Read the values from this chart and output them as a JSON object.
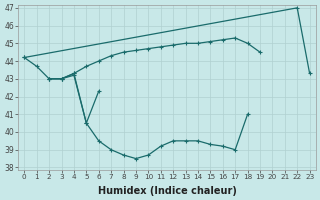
{
  "x_all": [
    0,
    1,
    2,
    3,
    4,
    5,
    6,
    7,
    8,
    9,
    10,
    11,
    12,
    13,
    14,
    15,
    16,
    17,
    18,
    19,
    20,
    21,
    22,
    23
  ],
  "seriesA": [
    44.2,
    null,
    null,
    null,
    null,
    null,
    null,
    null,
    null,
    null,
    null,
    null,
    null,
    null,
    null,
    null,
    null,
    null,
    null,
    null,
    null,
    null,
    47.0,
    43.3
  ],
  "seriesB": [
    null,
    null,
    43.0,
    43.0,
    43.3,
    43.7,
    44.0,
    44.3,
    44.5,
    44.6,
    44.7,
    44.8,
    44.9,
    45.0,
    45.0,
    45.1,
    45.2,
    45.3,
    45.0,
    44.5,
    null,
    null,
    null,
    null
  ],
  "seriesC": [
    44.2,
    43.7,
    43.0,
    43.0,
    43.3,
    40.5,
    42.3,
    null,
    null,
    null,
    null,
    null,
    null,
    null,
    null,
    null,
    null,
    null,
    null,
    null,
    null,
    null,
    null,
    null
  ],
  "seriesD": [
    null,
    null,
    43.0,
    43.0,
    43.2,
    40.5,
    39.5,
    39.0,
    38.7,
    38.5,
    38.7,
    39.2,
    39.5,
    39.5,
    39.5,
    39.3,
    39.2,
    39.0,
    41.0,
    null,
    null,
    null,
    null,
    null
  ],
  "background": "#c8e8e8",
  "line_color": "#1a6b6b",
  "grid_color": "#b0d0d0",
  "xlabel": "Humidex (Indice chaleur)",
  "xlim": [
    -0.5,
    23.5
  ],
  "ylim": [
    38,
    47
  ],
  "yticks": [
    38,
    39,
    40,
    41,
    42,
    43,
    44,
    45,
    46,
    47
  ],
  "xticks": [
    0,
    1,
    2,
    3,
    4,
    5,
    6,
    7,
    8,
    9,
    10,
    11,
    12,
    13,
    14,
    15,
    16,
    17,
    18,
    19,
    20,
    21,
    22,
    23
  ]
}
